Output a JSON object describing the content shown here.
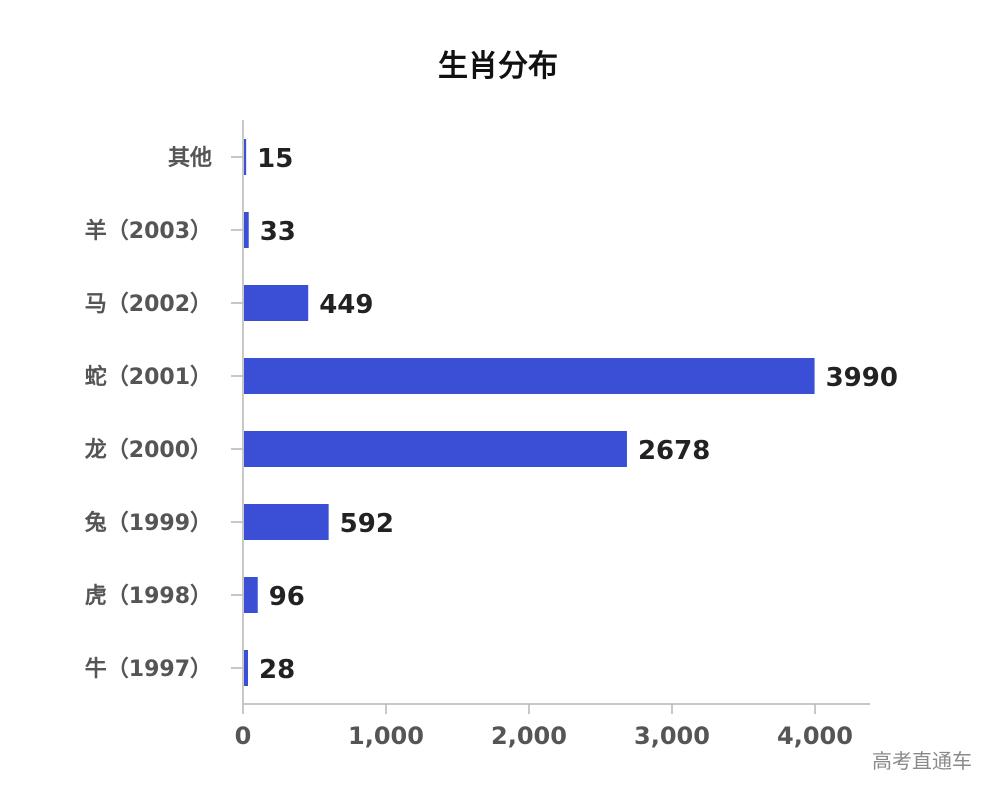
{
  "chart_data": {
    "type": "bar",
    "orientation": "horizontal",
    "title": "生肖分布",
    "categories": [
      "其他",
      "羊（2003）",
      "马（2002）",
      "蛇（2001）",
      "龙（2000）",
      "兔（1999）",
      "虎（1998）",
      "牛（1997）"
    ],
    "values": [
      15,
      33,
      449,
      3990,
      2678,
      592,
      96,
      28
    ],
    "x_ticks": [
      "0",
      "1,000",
      "2,000",
      "3,000",
      "4,000"
    ],
    "xlim": [
      0,
      4400
    ],
    "grid": false,
    "bar_color": "#3b4fd6"
  },
  "watermark": "高考直通车"
}
